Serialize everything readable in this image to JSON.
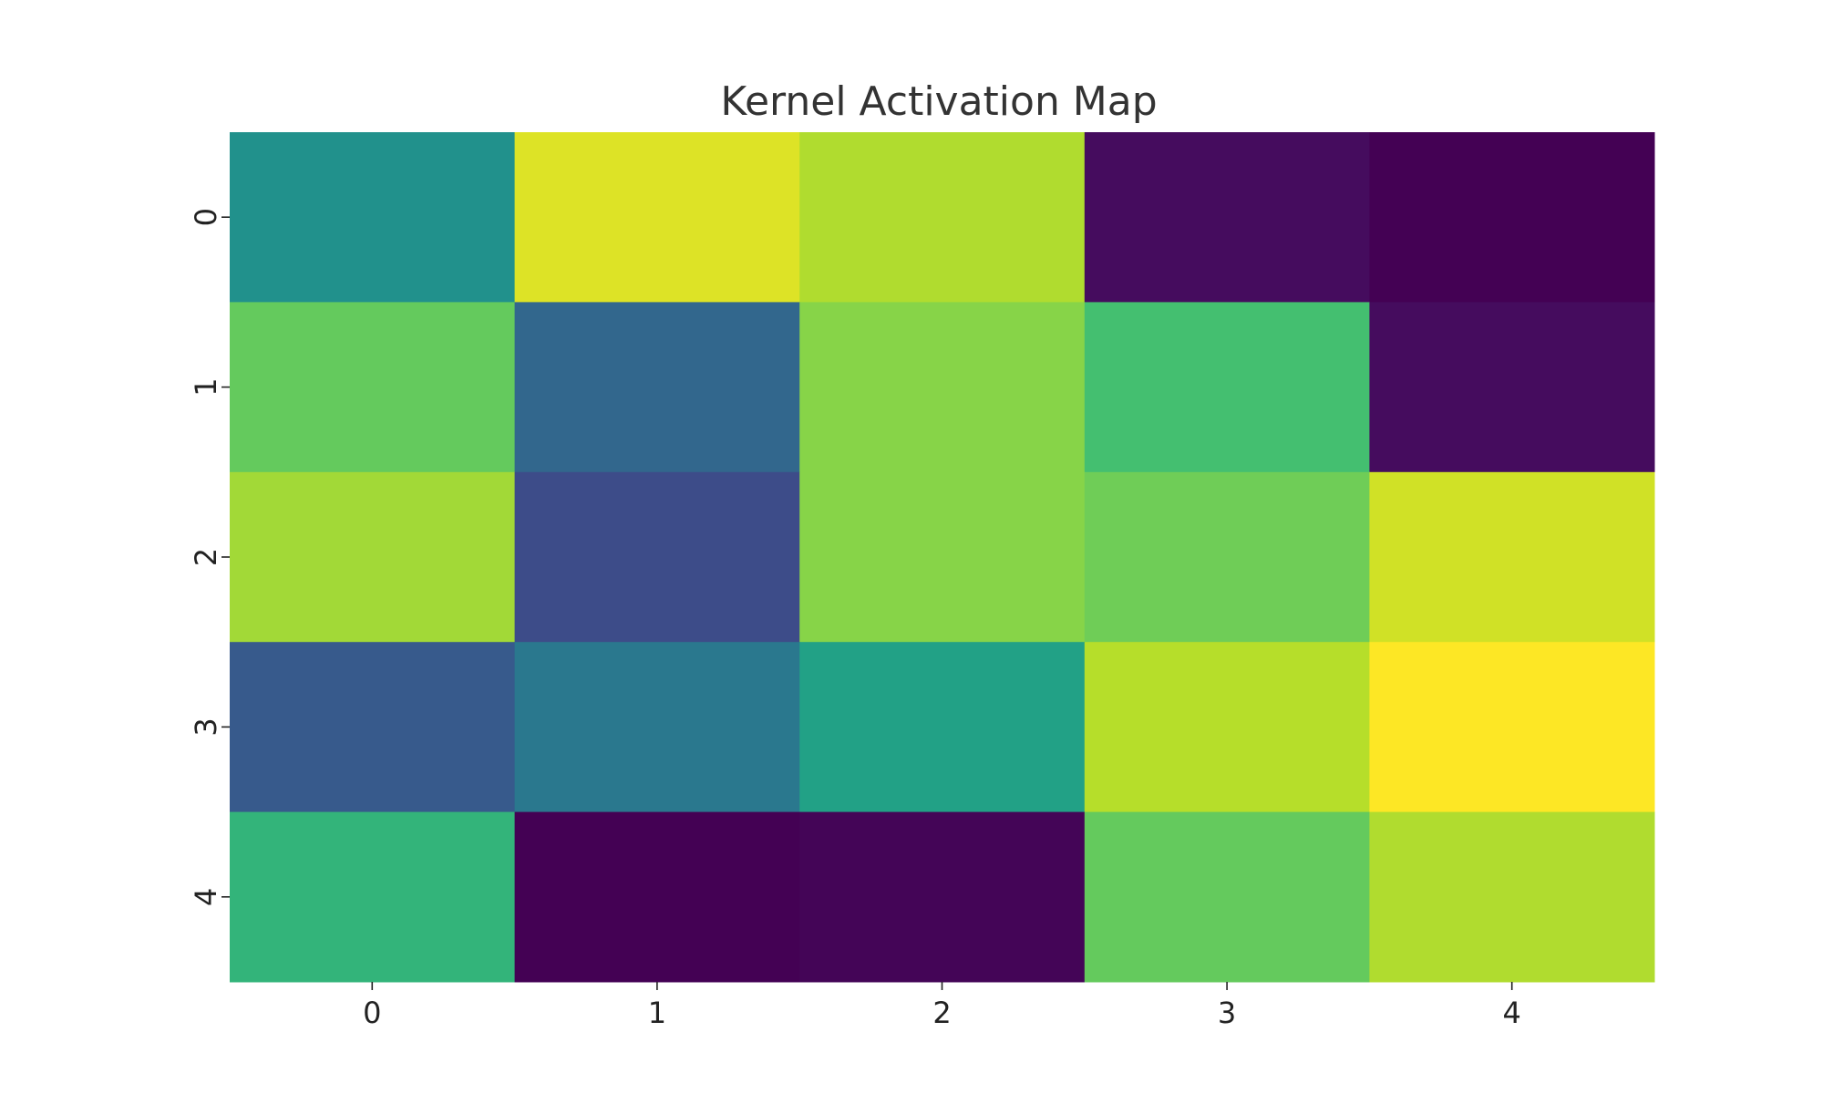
{
  "chart_data": {
    "type": "heatmap",
    "title": "Kernel Activation Map",
    "xlabel": "",
    "ylabel": "",
    "x_categories": [
      "0",
      "1",
      "2",
      "3",
      "4"
    ],
    "y_categories": [
      "0",
      "1",
      "2",
      "3",
      "4"
    ],
    "colormap": "viridis",
    "value_range": [
      0,
      1
    ],
    "values": [
      [
        0.5,
        0.95,
        0.88,
        0.03,
        0.0
      ],
      [
        0.76,
        0.33,
        0.82,
        0.7,
        0.03
      ],
      [
        0.86,
        0.23,
        0.82,
        0.78,
        0.93
      ],
      [
        0.28,
        0.4,
        0.57,
        0.89,
        1.0
      ],
      [
        0.65,
        0.0,
        0.01,
        0.76,
        0.88
      ]
    ],
    "colorbar": false,
    "grid": false
  }
}
